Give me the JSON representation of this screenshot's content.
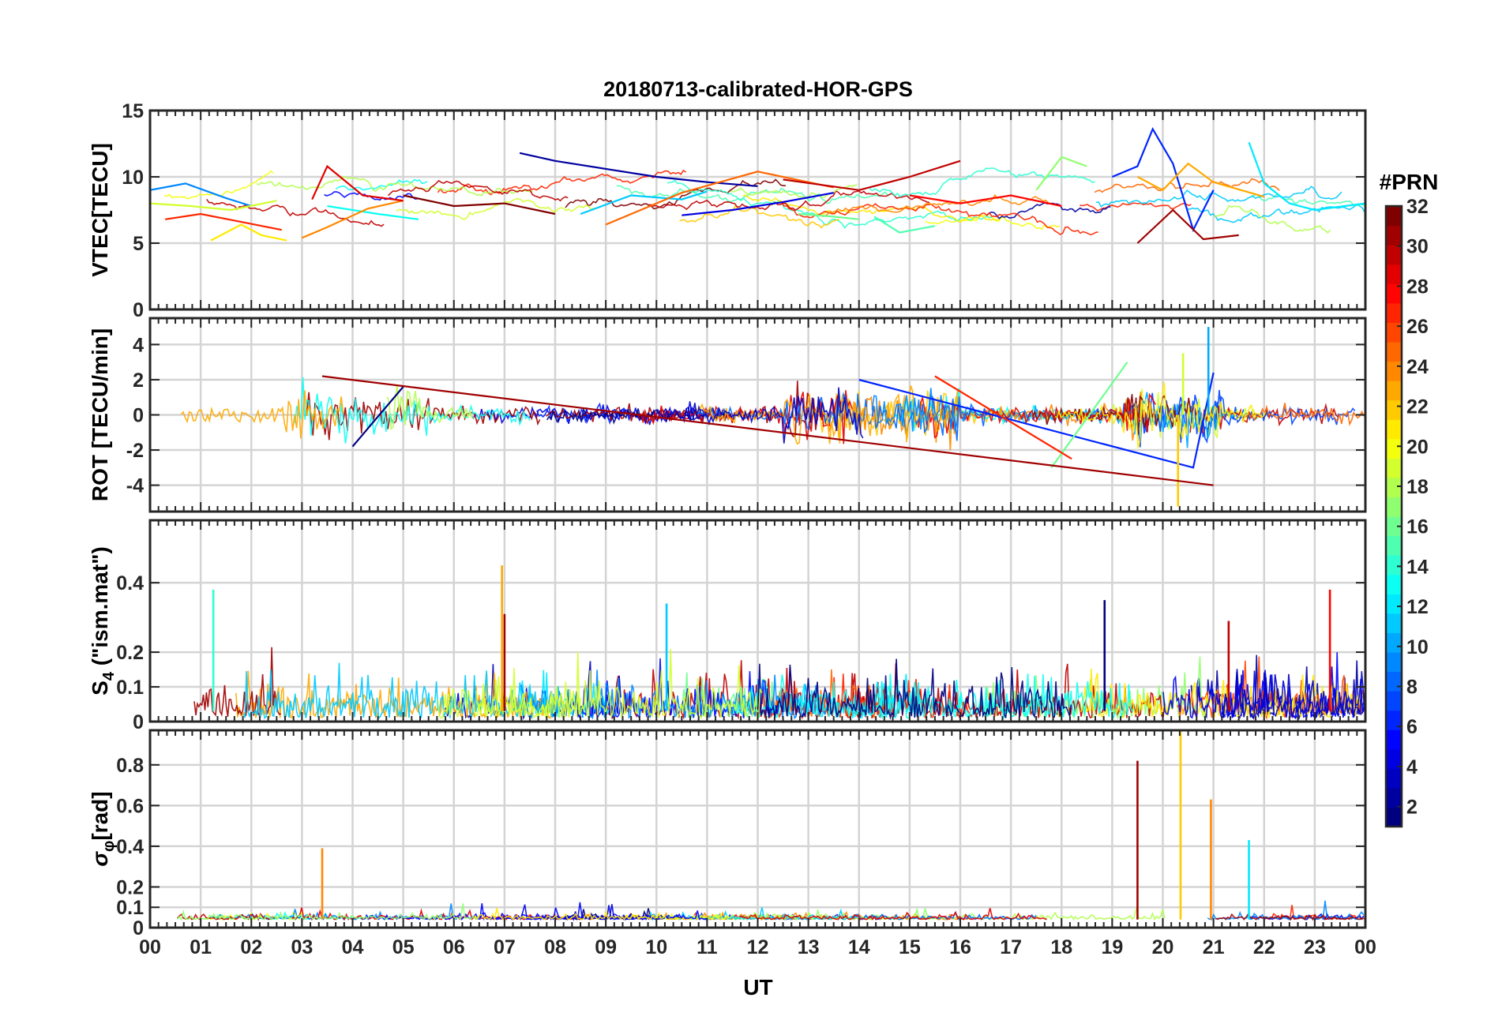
{
  "chart_data": {
    "type": "line",
    "title": "20180713-calibrated-HOR-GPS",
    "xlabel": "UT",
    "x_tick_labels": [
      "00",
      "01",
      "02",
      "03",
      "04",
      "05",
      "06",
      "07",
      "08",
      "09",
      "10",
      "11",
      "12",
      "13",
      "14",
      "15",
      "16",
      "17",
      "18",
      "19",
      "20",
      "21",
      "22",
      "23",
      "00"
    ],
    "xlim": [
      0,
      24
    ],
    "colorbar": {
      "label": "#PRN",
      "range": [
        1,
        32
      ],
      "tick_values": [
        2,
        4,
        6,
        8,
        10,
        12,
        14,
        16,
        18,
        20,
        22,
        24,
        26,
        28,
        30,
        32
      ],
      "tick_labels": [
        "2",
        "4",
        "6",
        "8",
        "10",
        "12",
        "14",
        "16",
        "18",
        "20",
        "22",
        "24",
        "26",
        "28",
        "30",
        "32"
      ],
      "colormap": "jet"
    },
    "panels": [
      {
        "name": "vtec",
        "ylabel": "VTEC[TECU]",
        "ylim": [
          0,
          15
        ],
        "yticks": [
          0,
          5,
          10,
          15
        ],
        "ytick_labels": [
          "0",
          "5",
          "10",
          "15"
        ],
        "series": [
          {
            "prn": 2,
            "x": [
              7.3,
              8.0,
              9.0,
              10.0,
              11.0,
              12.0
            ],
            "y": [
              11.8,
              11.2,
              10.6,
              10.0,
              9.6,
              9.3
            ]
          },
          {
            "prn": 4,
            "x": [
              10.5,
              11.5,
              12.5,
              13.5
            ],
            "y": [
              7.1,
              7.5,
              8.1,
              8.8
            ]
          },
          {
            "prn": 6,
            "x": [
              19.0,
              19.5,
              19.8,
              20.2,
              20.6,
              21.0
            ],
            "y": [
              10.0,
              10.8,
              13.6,
              11.0,
              6.0,
              9.0
            ]
          },
          {
            "prn": 9,
            "x": [
              0.0,
              0.7,
              1.5,
              2.0
            ],
            "y": [
              9.0,
              9.5,
              8.4,
              7.8
            ]
          },
          {
            "prn": 11,
            "x": [
              8.5,
              9.5,
              10.5,
              11.0
            ],
            "y": [
              7.2,
              8.6,
              8.3,
              8.9
            ]
          },
          {
            "prn": 12,
            "x": [
              21.7,
              22.0,
              22.5,
              23.0,
              24.0
            ],
            "y": [
              12.6,
              9.5,
              8.0,
              7.5,
              8.0
            ]
          },
          {
            "prn": 13,
            "x": [
              3.5,
              4.5,
              5.3
            ],
            "y": [
              7.8,
              7.2,
              6.8
            ]
          },
          {
            "prn": 15,
            "x": [
              14.3,
              14.8,
              15.5
            ],
            "y": [
              7.0,
              5.8,
              6.3
            ]
          },
          {
            "prn": 16,
            "x": [
              12.8,
              13.5,
              14.0
            ],
            "y": [
              7.2,
              7.0,
              6.8
            ]
          },
          {
            "prn": 17,
            "x": [
              17.5,
              18.0,
              18.5
            ],
            "y": [
              9.0,
              11.5,
              10.8
            ]
          },
          {
            "prn": 19,
            "x": [
              0.0,
              0.8,
              1.6,
              2.5
            ],
            "y": [
              8.0,
              7.8,
              7.5,
              8.2
            ]
          },
          {
            "prn": 21,
            "x": [
              1.2,
              1.8,
              2.2,
              2.7
            ],
            "y": [
              5.2,
              6.4,
              5.6,
              5.2
            ]
          },
          {
            "prn": 23,
            "x": [
              19.5,
              20.0,
              20.5,
              21.0,
              22.0
            ],
            "y": [
              10.0,
              9.0,
              11.0,
              9.6,
              8.5
            ]
          },
          {
            "prn": 24,
            "x": [
              3.0,
              3.5,
              4.3,
              5.0
            ],
            "y": [
              5.4,
              6.2,
              7.6,
              8.2
            ]
          },
          {
            "prn": 25,
            "x": [
              9.0,
              10.5,
              12.0,
              13.5
            ],
            "y": [
              6.4,
              8.8,
              10.4,
              9.2
            ]
          },
          {
            "prn": 27,
            "x": [
              0.3,
              1.0,
              1.8,
              2.6
            ],
            "y": [
              6.8,
              7.2,
              6.6,
              6.0
            ]
          },
          {
            "prn": 28,
            "x": [
              15.0,
              16.0,
              17.0,
              18.0
            ],
            "y": [
              8.6,
              8.0,
              8.6,
              7.8
            ]
          },
          {
            "prn": 29,
            "x": [
              3.2,
              3.5,
              4.2,
              5.0
            ],
            "y": [
              8.3,
              10.8,
              8.6,
              8.2
            ]
          },
          {
            "prn": 30,
            "x": [
              12.5,
              14.0,
              15.0,
              16.0
            ],
            "y": [
              9.8,
              9.0,
              10.0,
              11.2
            ]
          },
          {
            "prn": 31,
            "x": [
              19.5,
              20.2,
              20.8,
              21.5
            ],
            "y": [
              5.0,
              7.5,
              5.3,
              5.6
            ]
          },
          {
            "prn": 32,
            "x": [
              5.0,
              6.0,
              7.0,
              8.0
            ],
            "y": [
              8.6,
              7.8,
              8.0,
              7.2
            ]
          }
        ]
      },
      {
        "name": "rot",
        "ylabel": "ROT [TECU/min]",
        "ylim": [
          -5.5,
          5.5
        ],
        "yticks": [
          -4,
          -2,
          0,
          2,
          4
        ],
        "ytick_labels": [
          "-4",
          "-2",
          "0",
          "2",
          "4"
        ],
        "series": [
          {
            "prn": 1,
            "x": [
              4.0,
              5.0
            ],
            "y": [
              -1.8,
              1.6
            ]
          },
          {
            "prn": 6,
            "x": [
              14.0,
              20.6,
              21.0
            ],
            "y": [
              2.0,
              -3.0,
              2.4
            ]
          },
          {
            "prn": 10,
            "x": [
              20.9
            ],
            "y": [
              5.0
            ]
          },
          {
            "prn": 16,
            "x": [
              17.8,
              19.3
            ],
            "y": [
              -3.0,
              3.0
            ]
          },
          {
            "prn": 19,
            "x": [
              20.4
            ],
            "y": [
              3.5
            ]
          },
          {
            "prn": 22,
            "x": [
              20.3
            ],
            "y": [
              -5.2
            ]
          },
          {
            "prn": 27,
            "x": [
              15.5,
              18.2
            ],
            "y": [
              2.2,
              -2.5
            ]
          },
          {
            "prn": 31,
            "x": [
              3.4,
              21.0
            ],
            "y": [
              2.2,
              -4.0
            ]
          }
        ]
      },
      {
        "name": "s4",
        "ylabel": "S4 (\"ism.mat\")",
        "ylabel_main": "S",
        "ylabel_sub": "4",
        "ylabel_rest": " (\"ism.mat\")",
        "ylim": [
          0,
          0.58
        ],
        "yticks": [
          0,
          0.1,
          0.2,
          0.4
        ],
        "ytick_labels": [
          "0",
          "0.1",
          "0.2",
          "0.4"
        ],
        "series": [
          {
            "prn": 14,
            "x": [
              1.25
            ],
            "y": [
              0.38
            ]
          },
          {
            "prn": 23,
            "x": [
              6.95
            ],
            "y": [
              0.45
            ]
          },
          {
            "prn": 31,
            "x": [
              7.0
            ],
            "y": [
              0.31
            ]
          },
          {
            "prn": 11,
            "x": [
              10.2
            ],
            "y": [
              0.34
            ]
          },
          {
            "prn": 1,
            "x": [
              18.85
            ],
            "y": [
              0.35
            ]
          },
          {
            "prn": 30,
            "x": [
              21.3
            ],
            "y": [
              0.29
            ]
          },
          {
            "prn": 28,
            "x": [
              23.3
            ],
            "y": [
              0.38
            ]
          }
        ]
      },
      {
        "name": "sigma_phi",
        "ylabel": "σφ[rad]",
        "ylabel_main": "σ",
        "ylabel_sub": "φ",
        "ylabel_rest": "[rad]",
        "ylim": [
          0,
          0.97
        ],
        "yticks": [
          0,
          0.1,
          0.2,
          0.4,
          0.6,
          0.8
        ],
        "ytick_labels": [
          "0",
          "0.1",
          "0.2",
          "0.4",
          "0.6",
          "0.8"
        ],
        "series": [
          {
            "prn": 24,
            "x": [
              3.4
            ],
            "y": [
              0.39
            ]
          },
          {
            "prn": 31,
            "x": [
              19.5
            ],
            "y": [
              0.82
            ]
          },
          {
            "prn": 22,
            "x": [
              20.35
            ],
            "y": [
              0.97
            ]
          },
          {
            "prn": 24,
            "x": [
              20.95
            ],
            "y": [
              0.63
            ]
          },
          {
            "prn": 12,
            "x": [
              21.7
            ],
            "y": [
              0.43
            ]
          }
        ]
      }
    ]
  }
}
